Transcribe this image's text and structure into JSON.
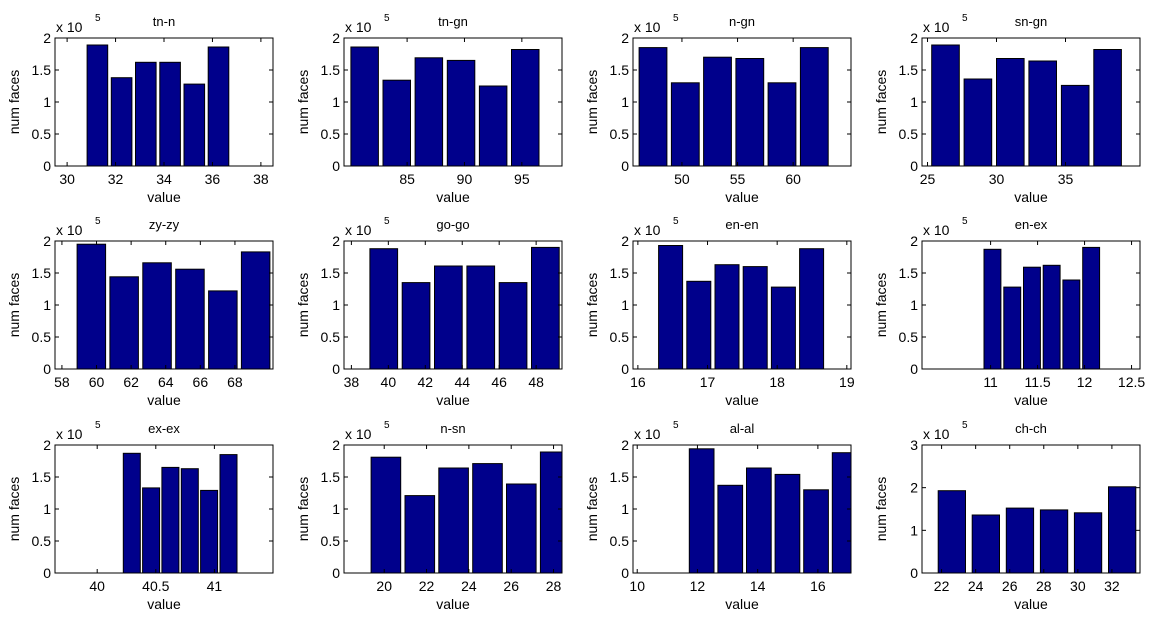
{
  "figure": {
    "bar_color": "#00008B",
    "axis_color": "#000000",
    "background": "#FFFFFF",
    "ylabel": "num faces",
    "xlabel": "value",
    "scale_prefix": "x 10",
    "scale_exponent": "5"
  },
  "chart_data": [
    {
      "type": "bar",
      "title": "tn-n",
      "xlabel": "value",
      "ylabel": "num faces",
      "xlim": [
        29.5,
        38.5
      ],
      "ylim": [
        0,
        2
      ],
      "xticks": [
        30,
        32,
        34,
        36,
        38
      ],
      "xtick_labels": [
        "30",
        "32",
        "34",
        "36",
        "38"
      ],
      "yticks": [
        0,
        0.5,
        1,
        1.5,
        2
      ],
      "ytick_labels": [
        "0",
        "0.5",
        "1",
        "1.5",
        "2"
      ],
      "y_scale": "x 10^5",
      "bar_width": 0.85,
      "x": [
        31.25,
        32.25,
        33.25,
        34.25,
        35.25,
        36.25
      ],
      "values": [
        1.89,
        1.38,
        1.62,
        1.62,
        1.28,
        1.86
      ]
    },
    {
      "type": "bar",
      "title": "tn-gn",
      "xlabel": "value",
      "ylabel": "num faces",
      "xlim": [
        79.5,
        98.5
      ],
      "ylim": [
        0,
        2
      ],
      "xticks": [
        85,
        90,
        95
      ],
      "xtick_labels": [
        "85",
        "90",
        "95"
      ],
      "yticks": [
        0,
        0.5,
        1,
        1.5,
        2
      ],
      "ytick_labels": [
        "0",
        "0.5",
        "1",
        "1.5",
        "2"
      ],
      "y_scale": "x 10^5",
      "bar_width": 2.4,
      "x": [
        81.3,
        84.1,
        86.9,
        89.7,
        92.5,
        95.3
      ],
      "values": [
        1.86,
        1.34,
        1.69,
        1.65,
        1.25,
        1.82
      ]
    },
    {
      "type": "bar",
      "title": "n-gn",
      "xlabel": "value",
      "ylabel": "num faces",
      "xlim": [
        45.6,
        65.2
      ],
      "ylim": [
        0,
        2
      ],
      "xticks": [
        50,
        55,
        60
      ],
      "xtick_labels": [
        "50",
        "55",
        "60"
      ],
      "yticks": [
        0,
        0.5,
        1,
        1.5,
        2
      ],
      "ytick_labels": [
        "0",
        "0.5",
        "1",
        "1.5",
        "2"
      ],
      "y_scale": "x 10^5",
      "bar_width": 2.5,
      "x": [
        47.4,
        50.3,
        53.2,
        56.1,
        59.0,
        61.9
      ],
      "values": [
        1.85,
        1.3,
        1.7,
        1.68,
        1.3,
        1.85
      ]
    },
    {
      "type": "bar",
      "title": "sn-gn",
      "xlabel": "value",
      "ylabel": "num faces",
      "xlim": [
        24.6,
        40.4
      ],
      "ylim": [
        0,
        2
      ],
      "xticks": [
        25,
        30,
        35
      ],
      "xtick_labels": [
        "25",
        "30",
        "35"
      ],
      "yticks": [
        0,
        0.5,
        1,
        1.5,
        2
      ],
      "ytick_labels": [
        "0",
        "0.5",
        "1",
        "1.5",
        "2"
      ],
      "y_scale": "x 10^5",
      "bar_width": 2.0,
      "x": [
        26.3,
        28.65,
        31.0,
        33.35,
        35.7,
        38.05
      ],
      "values": [
        1.89,
        1.36,
        1.68,
        1.64,
        1.26,
        1.82
      ]
    },
    {
      "type": "bar",
      "title": "zy-zy",
      "xlabel": "value",
      "ylabel": "num faces",
      "xlim": [
        57.6,
        70.2
      ],
      "ylim": [
        0,
        2
      ],
      "xticks": [
        58,
        60,
        62,
        64,
        66,
        68
      ],
      "xtick_labels": [
        "58",
        "60",
        "62",
        "64",
        "66",
        "68"
      ],
      "yticks": [
        0,
        0.5,
        1,
        1.5,
        2
      ],
      "ytick_labels": [
        "0",
        "0.5",
        "1",
        "1.5",
        "2"
      ],
      "y_scale": "x 10^5",
      "bar_width": 1.65,
      "x": [
        59.7,
        61.6,
        63.5,
        65.4,
        67.3,
        69.2
      ],
      "values": [
        1.95,
        1.44,
        1.66,
        1.56,
        1.22,
        1.83
      ]
    },
    {
      "type": "bar",
      "title": "go-go",
      "xlabel": "value",
      "ylabel": "num faces",
      "xlim": [
        37.6,
        49.4
      ],
      "ylim": [
        0,
        2
      ],
      "xticks": [
        38,
        40,
        42,
        44,
        46,
        48
      ],
      "xtick_labels": [
        "38",
        "40",
        "42",
        "44",
        "46",
        "48"
      ],
      "yticks": [
        0,
        0.5,
        1,
        1.5,
        2
      ],
      "ytick_labels": [
        "0",
        "0.5",
        "1",
        "1.5",
        "2"
      ],
      "y_scale": "x 10^5",
      "bar_width": 1.5,
      "x": [
        39.75,
        41.5,
        43.25,
        45.0,
        46.75,
        48.5
      ],
      "values": [
        1.88,
        1.35,
        1.61,
        1.61,
        1.35,
        1.9
      ]
    },
    {
      "type": "bar",
      "title": "en-en",
      "xlabel": "value",
      "ylabel": "num faces",
      "xlim": [
        15.93,
        19.06
      ],
      "ylim": [
        0,
        2
      ],
      "xticks": [
        16,
        17,
        18,
        19
      ],
      "xtick_labels": [
        "16",
        "17",
        "18",
        "19"
      ],
      "yticks": [
        0,
        0.5,
        1,
        1.5,
        2
      ],
      "ytick_labels": [
        "0",
        "0.5",
        "1",
        "1.5",
        "2"
      ],
      "y_scale": "x 10^5",
      "bar_width": 0.345,
      "x": [
        16.47,
        16.875,
        17.28,
        17.685,
        18.09,
        18.495
      ],
      "values": [
        1.93,
        1.37,
        1.63,
        1.6,
        1.28,
        1.88
      ]
    },
    {
      "type": "bar",
      "title": "en-ex",
      "xlabel": "value",
      "ylabel": "num faces",
      "xlim": [
        10.27,
        12.59
      ],
      "ylim": [
        0,
        2
      ],
      "xticks": [
        11,
        11.5,
        12,
        12.5
      ],
      "xtick_labels": [
        "11",
        "11.5",
        "12",
        "12.5"
      ],
      "yticks": [
        0,
        0.5,
        1,
        1.5,
        2
      ],
      "ytick_labels": [
        "0",
        "0.5",
        "1",
        "1.5",
        "2"
      ],
      "y_scale": "x 10^5",
      "bar_width": 0.18,
      "x": [
        11.02,
        11.23,
        11.44,
        11.65,
        11.86,
        12.07
      ],
      "values": [
        1.87,
        1.28,
        1.59,
        1.62,
        1.39,
        1.9
      ]
    },
    {
      "type": "bar",
      "title": "ex-ex",
      "xlabel": "value",
      "ylabel": "num faces",
      "xlim": [
        39.64,
        41.5
      ],
      "ylim": [
        0,
        2
      ],
      "xticks": [
        40,
        40.5,
        41
      ],
      "xtick_labels": [
        "40",
        "40.5",
        "41"
      ],
      "yticks": [
        0,
        0.5,
        1,
        1.5,
        2
      ],
      "ytick_labels": [
        "0",
        "0.5",
        "1",
        "1.5",
        "2"
      ],
      "y_scale": "x 10^5",
      "bar_width": 0.145,
      "x": [
        40.295,
        40.46,
        40.625,
        40.79,
        40.955,
        41.12
      ],
      "values": [
        1.87,
        1.33,
        1.65,
        1.63,
        1.29,
        1.85
      ]
    },
    {
      "type": "bar",
      "title": "n-sn",
      "xlabel": "value",
      "ylabel": "num faces",
      "xlim": [
        18.1,
        28.4
      ],
      "ylim": [
        0,
        2
      ],
      "xticks": [
        20,
        22,
        24,
        26,
        28
      ],
      "xtick_labels": [
        "20",
        "22",
        "24",
        "26",
        "28"
      ],
      "yticks": [
        0,
        0.5,
        1,
        1.5,
        2
      ],
      "ytick_labels": [
        "0",
        "0.5",
        "1",
        "1.5",
        "2"
      ],
      "y_scale": "x 10^5",
      "bar_width": 1.4,
      "x": [
        20.08,
        21.68,
        23.28,
        24.88,
        26.48,
        28.08
      ],
      "values": [
        1.81,
        1.21,
        1.64,
        1.71,
        1.39,
        1.89
      ]
    },
    {
      "type": "bar",
      "title": "al-al",
      "xlabel": "value",
      "ylabel": "num faces",
      "xlim": [
        9.86,
        17.1
      ],
      "ylim": [
        0,
        2
      ],
      "xticks": [
        10,
        12,
        14,
        16
      ],
      "xtick_labels": [
        "10",
        "12",
        "14",
        "16"
      ],
      "yticks": [
        0,
        0.5,
        1,
        1.5,
        2
      ],
      "ytick_labels": [
        "0",
        "0.5",
        "1",
        "1.5",
        "2"
      ],
      "y_scale": "x 10^5",
      "bar_width": 0.82,
      "x": [
        12.14,
        13.09,
        14.04,
        14.99,
        15.94,
        16.89
      ],
      "values": [
        1.94,
        1.37,
        1.64,
        1.54,
        1.3,
        1.88
      ]
    },
    {
      "type": "bar",
      "title": "ch-ch",
      "xlabel": "value",
      "ylabel": "num faces",
      "xlim": [
        20.85,
        33.65
      ],
      "ylim": [
        0,
        3
      ],
      "xticks": [
        22,
        24,
        26,
        28,
        30,
        32
      ],
      "xtick_labels": [
        "22",
        "24",
        "26",
        "28",
        "30",
        "32"
      ],
      "yticks": [
        0,
        1,
        2,
        3
      ],
      "ytick_labels": [
        "0",
        "1",
        "2",
        "3"
      ],
      "y_scale": "x 10^5",
      "bar_width": 1.6,
      "x": [
        22.6,
        24.6,
        26.6,
        28.6,
        30.6,
        32.6
      ],
      "values": [
        1.93,
        1.36,
        1.52,
        1.48,
        1.41,
        2.02
      ]
    }
  ]
}
